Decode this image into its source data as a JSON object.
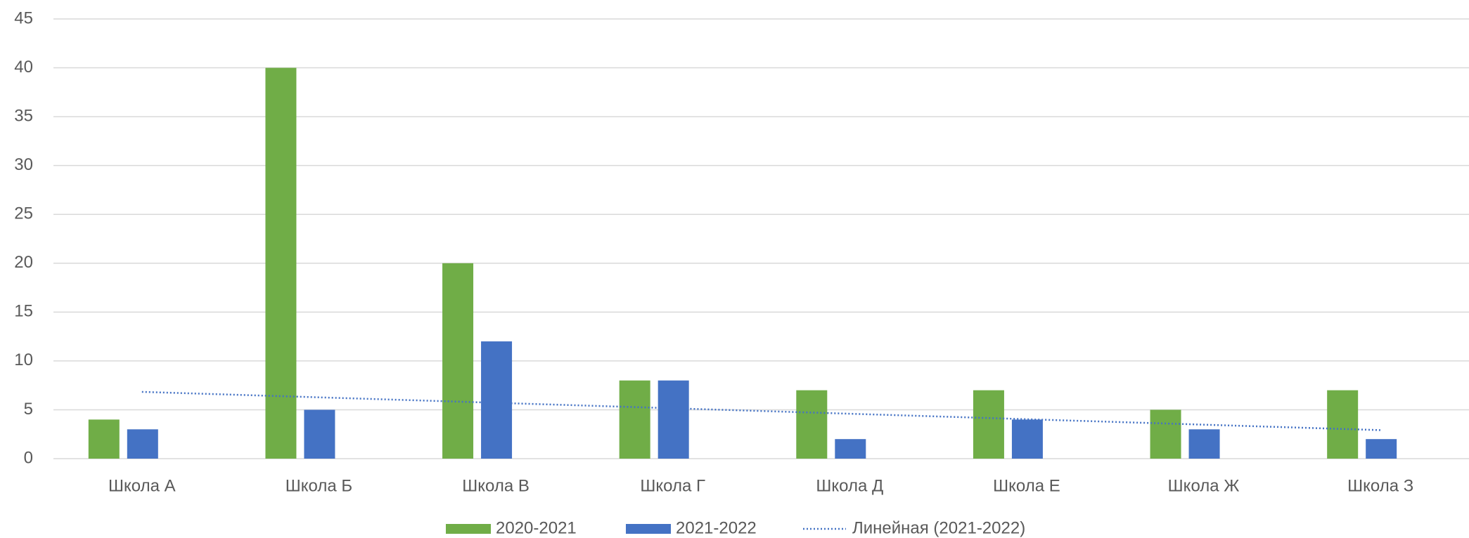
{
  "chart_data": {
    "type": "bar",
    "categories": [
      "Школа А",
      "Школа Б",
      "Школа В",
      "Школа Г",
      "Школа Д",
      "Школа Е",
      "Школа Ж",
      "Школа З"
    ],
    "series": [
      {
        "name": "2020-2021",
        "color": "#70ad47",
        "values": [
          4,
          40,
          20,
          8,
          7,
          7,
          5,
          7
        ]
      },
      {
        "name": "2021-2022",
        "color": "#4472c4",
        "values": [
          3,
          5,
          12,
          8,
          2,
          4,
          3,
          2
        ]
      }
    ],
    "trendline": {
      "name": "Линейная (2021-2022)",
      "series": 1,
      "kind": "linear",
      "color": "#4472c4"
    },
    "ylim": [
      0,
      45
    ],
    "yticks": [
      0,
      5,
      10,
      15,
      20,
      25,
      30,
      35,
      40,
      45
    ],
    "grid": true
  }
}
